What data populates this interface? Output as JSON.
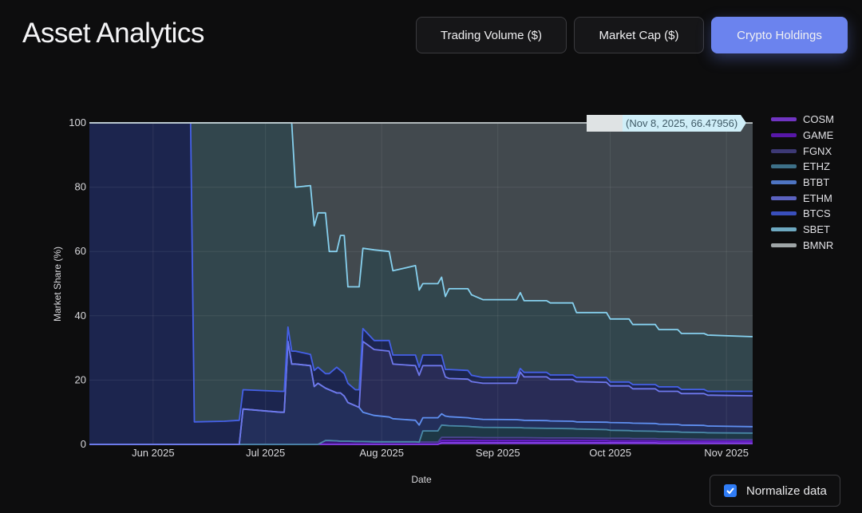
{
  "header": {
    "title": "Asset Analytics"
  },
  "tabs": [
    {
      "label": "Trading Volume ($)",
      "active": false
    },
    {
      "label": "Market Cap ($)",
      "active": false
    },
    {
      "label": "Crypto Holdings",
      "active": true
    }
  ],
  "controls": {
    "normalize_label": "Normalize data",
    "normalize_checked": true,
    "accent": "#6b83ee"
  },
  "chart_data": {
    "type": "area",
    "stacked": true,
    "xlabel": "Date",
    "ylabel": "Market Share (%)",
    "ylim": [
      0,
      100
    ],
    "xlim": [
      "2025-05-15",
      "2025-11-08"
    ],
    "yticks": [
      "0",
      "20",
      "40",
      "60",
      "80",
      "100"
    ],
    "xticks": [
      {
        "date": "2025-06-01",
        "label": "Jun 2025"
      },
      {
        "date": "2025-07-01",
        "label": "Jul 2025"
      },
      {
        "date": "2025-08-01",
        "label": "Aug 2025"
      },
      {
        "date": "2025-09-01",
        "label": "Sep 2025"
      },
      {
        "date": "2025-10-01",
        "label": "Oct 2025"
      },
      {
        "date": "2025-11-01",
        "label": "Nov 2025"
      }
    ],
    "grid": true,
    "legend_position": "right",
    "hover_label": "(Nov 8, 2025, 66.47956)",
    "x": [
      "2025-05-15",
      "2025-06-11",
      "2025-06-12",
      "2025-06-20",
      "2025-06-24",
      "2025-06-25",
      "2025-07-05",
      "2025-07-06",
      "2025-07-07",
      "2025-07-08",
      "2025-07-09",
      "2025-07-13",
      "2025-07-14",
      "2025-07-15",
      "2025-07-17",
      "2025-07-18",
      "2025-07-20",
      "2025-07-21",
      "2025-07-22",
      "2025-07-23",
      "2025-07-25",
      "2025-07-26",
      "2025-07-27",
      "2025-07-30",
      "2025-08-03",
      "2025-08-04",
      "2025-08-10",
      "2025-08-11",
      "2025-08-12",
      "2025-08-16",
      "2025-08-17",
      "2025-08-18",
      "2025-08-19",
      "2025-08-24",
      "2025-08-25",
      "2025-08-28",
      "2025-09-06",
      "2025-09-07",
      "2025-09-08",
      "2025-09-14",
      "2025-09-15",
      "2025-09-21",
      "2025-09-22",
      "2025-09-30",
      "2025-10-01",
      "2025-10-06",
      "2025-10-07",
      "2025-10-13",
      "2025-10-14",
      "2025-10-19",
      "2025-10-20",
      "2025-10-26",
      "2025-10-27",
      "2025-11-08"
    ],
    "series": [
      {
        "name": "COSM",
        "color": "#8a3ff0",
        "fill": "#5a2aa0",
        "values": [
          0,
          0,
          0,
          0,
          0,
          0,
          0,
          0,
          0,
          0,
          0,
          0,
          0,
          0,
          0,
          0,
          0,
          0,
          0,
          0,
          0,
          0,
          0,
          0,
          0,
          0,
          0,
          0,
          0,
          0,
          0.5,
          0.5,
          0.5,
          0.5,
          0.5,
          0.5,
          0.5,
          0.5,
          0.5,
          0.5,
          0.5,
          0.5,
          0.5,
          0.5,
          0.5,
          0.5,
          0.5,
          0.5,
          0.4,
          0.4,
          0.4,
          0.4,
          0.4,
          0.4
        ]
      },
      {
        "name": "GAME",
        "color": "#6a1ad0",
        "fill": "#3a1480",
        "values": [
          0,
          0,
          0,
          0,
          0,
          0,
          0,
          0,
          0,
          0,
          0,
          0,
          0,
          0,
          1.2,
          1.2,
          1.1,
          1.0,
          1.0,
          1.0,
          0.9,
          0.9,
          0.9,
          0.8,
          0.8,
          0.8,
          0.8,
          0.7,
          0.7,
          0.7,
          0.7,
          0.7,
          0.7,
          0.7,
          0.7,
          0.7,
          0.7,
          0.7,
          0.7,
          0.7,
          0.7,
          0.7,
          0.7,
          0.7,
          0.6,
          0.6,
          0.6,
          0.6,
          0.6,
          0.6,
          0.6,
          0.6,
          0.6,
          0.6
        ]
      },
      {
        "name": "FGNX",
        "color": "#4a4590",
        "fill": "#262450",
        "values": [
          0,
          0,
          0,
          0,
          0,
          0,
          0,
          0,
          0,
          0,
          0,
          0,
          0,
          0,
          0,
          0,
          0,
          0,
          0,
          0,
          0,
          0,
          0,
          0,
          0,
          0,
          0,
          0,
          0,
          0,
          1.0,
          1.0,
          1.0,
          1.0,
          1.0,
          0.9,
          0.9,
          0.9,
          0.9,
          0.8,
          0.8,
          0.8,
          0.8,
          0.7,
          0.8,
          0.8,
          0.7,
          0.7,
          0.7,
          0.7,
          0.7,
          0.6,
          0.6,
          0.5
        ]
      },
      {
        "name": "ETHZ",
        "color": "#4a8aa8",
        "fill": "#1f3a48",
        "values": [
          0,
          0,
          0,
          0,
          0,
          0,
          0,
          0,
          0,
          0,
          0,
          0,
          0,
          0,
          0,
          0,
          0,
          0,
          0,
          0,
          0,
          0,
          0,
          0,
          0,
          0,
          0,
          0,
          3.5,
          3.5,
          3.8,
          3.7,
          3.6,
          3.4,
          3.3,
          3.2,
          3.1,
          3.1,
          3.0,
          3.0,
          3.0,
          2.9,
          2.8,
          2.7,
          2.5,
          2.4,
          2.4,
          2.3,
          2.3,
          2.2,
          2.1,
          2.1,
          2.0,
          2.0
        ]
      },
      {
        "name": "BTBT",
        "color": "#5f8ff0",
        "fill": "#24305e",
        "values": [
          0,
          0,
          0,
          0,
          0,
          11,
          10,
          10,
          32,
          25,
          25,
          24.5,
          18,
          19,
          16.3,
          15.8,
          14.9,
          15.0,
          14.0,
          12.0,
          11.1,
          10.6,
          9.1,
          8.2,
          7.7,
          7.2,
          6.7,
          5.3,
          4.1,
          4.1,
          3.5,
          2.9,
          2.8,
          2.7,
          2.6,
          2.5,
          2.5,
          2.4,
          2.4,
          2.4,
          2.3,
          2.3,
          2.2,
          2.3,
          2.4,
          2.4,
          2.4,
          2.4,
          2.3,
          2.3,
          2.2,
          2.2,
          2.1,
          2.0
        ]
      },
      {
        "name": "ETHM",
        "color": "#6f78ec",
        "fill": "#2a2d58",
        "values": [
          0,
          0,
          0,
          0,
          0,
          0,
          0,
          0,
          0,
          0,
          0,
          0,
          0,
          0,
          0,
          0,
          0,
          0,
          0,
          0,
          0,
          0,
          22,
          20.5,
          20.5,
          17,
          17,
          15.5,
          16.2,
          16.2,
          15,
          12.2,
          11.9,
          12,
          11.4,
          11.2,
          11.3,
          14.9,
          13.5,
          13.6,
          12.9,
          13,
          12.5,
          12.4,
          11.4,
          11.5,
          10.7,
          10.8,
          10.2,
          10.3,
          9.8,
          9.9,
          9.6,
          9.6
        ]
      },
      {
        "name": "BTCS",
        "color": "#4560e8",
        "fill": "#1c2650",
        "values": [
          100,
          100,
          7,
          7.2,
          7.5,
          6,
          6.5,
          6.5,
          4.5,
          4,
          4,
          3.5,
          5,
          5,
          4.5,
          5,
          8,
          7,
          7,
          6,
          5,
          5.5,
          4,
          2.8,
          3.3,
          2.8,
          3.3,
          2.5,
          3.3,
          3.3,
          3.3,
          2.3,
          2.8,
          2.7,
          2,
          1.8,
          1.8,
          1.1,
          1.4,
          1.4,
          1.4,
          1.4,
          1.3,
          1.5,
          1.2,
          1.2,
          1.3,
          1.3,
          1.4,
          1.4,
          1.3,
          1.3,
          1.2,
          1.4
        ]
      },
      {
        "name": "SBET",
        "color": "#86d0ee",
        "fill": "#34494f",
        "values": [
          0,
          0,
          93,
          92.8,
          92.5,
          83,
          83.5,
          83.5,
          63.5,
          71,
          51,
          52.5,
          45,
          48,
          50,
          38,
          36,
          42,
          43,
          30,
          32,
          32,
          25,
          28.2,
          27.7,
          26.2,
          27.8,
          24,
          22.2,
          22.2,
          24.2,
          22.7,
          25.1,
          25.4,
          25,
          24.2,
          24.2,
          23.6,
          22.3,
          22.3,
          22.4,
          22.4,
          20.2,
          20.2,
          19.6,
          19.6,
          18.7,
          18.7,
          17.8,
          17.8,
          17.4,
          17.4,
          17.5,
          17.0
        ]
      },
      {
        "name": "BMNR",
        "color": "#c4ccce",
        "fill": "#444c50",
        "values": [
          0,
          0,
          0,
          0,
          0,
          0,
          0,
          0,
          0,
          0,
          20,
          19.5,
          32,
          28,
          28,
          40,
          40,
          35,
          35,
          51,
          51,
          51,
          39,
          39.5,
          40,
          46,
          44.4,
          52,
          50,
          50,
          48,
          54,
          51.6,
          51.6,
          53.5,
          55,
          55,
          52.8,
          55.3,
          55.3,
          56,
          56,
          59,
          59,
          61,
          61,
          62.7,
          62.7,
          64.3,
          64.3,
          65.5,
          65.5,
          66,
          66.48
        ]
      }
    ]
  }
}
